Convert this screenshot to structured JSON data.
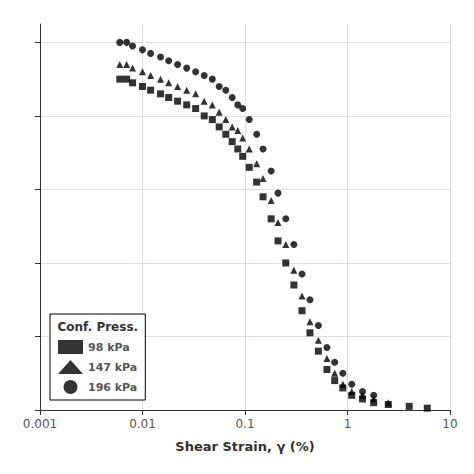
{
  "chart_data": {
    "type": "scatter",
    "xlabel": "Shear Strain, γ (%)",
    "log": "x",
    "xlim": [
      0.001,
      10
    ],
    "xticks": [
      0.001,
      0.01,
      0.1,
      1,
      10
    ],
    "ylim": [
      0,
      1.05
    ],
    "yticks": [
      0,
      0.2,
      0.4,
      0.6,
      0.8,
      1.0
    ],
    "tick_labels": "x",
    "grid": true,
    "legend": "lower left",
    "legend_title": "Conf. Press.",
    "series": [
      {
        "name": "98 kPa",
        "color": "#000000",
        "marker": "square",
        "x": [
          0.006,
          0.007,
          0.008,
          0.01,
          0.012,
          0.015,
          0.018,
          0.022,
          0.027,
          0.033,
          0.04,
          0.048,
          0.056,
          0.065,
          0.075,
          0.085,
          0.095,
          0.11,
          0.13,
          0.15,
          0.18,
          0.21,
          0.25,
          0.3,
          0.36,
          0.43,
          0.52,
          0.63,
          0.75,
          0.9,
          1.1,
          1.4,
          1.8,
          2.5,
          4.0,
          6.0
        ],
        "values": [
          0.9,
          0.9,
          0.89,
          0.88,
          0.87,
          0.86,
          0.85,
          0.84,
          0.83,
          0.82,
          0.8,
          0.79,
          0.77,
          0.75,
          0.73,
          0.71,
          0.69,
          0.66,
          0.62,
          0.58,
          0.52,
          0.46,
          0.4,
          0.34,
          0.27,
          0.21,
          0.16,
          0.11,
          0.08,
          0.06,
          0.04,
          0.03,
          0.02,
          0.015,
          0.01,
          0.005
        ]
      },
      {
        "name": "147 kPa",
        "color": "#000000",
        "marker": "triangle",
        "x": [
          0.006,
          0.007,
          0.008,
          0.01,
          0.012,
          0.015,
          0.018,
          0.022,
          0.027,
          0.033,
          0.04,
          0.048,
          0.056,
          0.065,
          0.075,
          0.085,
          0.095,
          0.11,
          0.13,
          0.15,
          0.18,
          0.21,
          0.25,
          0.3,
          0.36,
          0.43,
          0.52,
          0.63,
          0.75,
          0.9,
          1.1,
          1.4,
          1.8,
          2.5
        ],
        "values": [
          0.94,
          0.94,
          0.93,
          0.92,
          0.91,
          0.9,
          0.89,
          0.88,
          0.87,
          0.86,
          0.84,
          0.83,
          0.81,
          0.79,
          0.77,
          0.76,
          0.74,
          0.71,
          0.67,
          0.63,
          0.57,
          0.51,
          0.45,
          0.38,
          0.31,
          0.24,
          0.19,
          0.14,
          0.1,
          0.07,
          0.05,
          0.04,
          0.03,
          0.02
        ]
      },
      {
        "name": "196 kPa",
        "color": "#000000",
        "marker": "circle",
        "x": [
          0.006,
          0.007,
          0.008,
          0.01,
          0.012,
          0.015,
          0.018,
          0.022,
          0.027,
          0.033,
          0.04,
          0.048,
          0.056,
          0.065,
          0.075,
          0.085,
          0.095,
          0.11,
          0.13,
          0.15,
          0.18,
          0.21,
          0.25,
          0.3,
          0.36,
          0.43,
          0.52,
          0.63,
          0.75,
          0.9,
          1.1,
          1.4,
          1.8
        ],
        "values": [
          1.0,
          1.0,
          0.99,
          0.98,
          0.97,
          0.96,
          0.95,
          0.94,
          0.93,
          0.92,
          0.91,
          0.9,
          0.88,
          0.87,
          0.85,
          0.83,
          0.82,
          0.79,
          0.75,
          0.71,
          0.65,
          0.59,
          0.52,
          0.45,
          0.37,
          0.3,
          0.23,
          0.17,
          0.13,
          0.1,
          0.07,
          0.05,
          0.04
        ]
      }
    ]
  }
}
